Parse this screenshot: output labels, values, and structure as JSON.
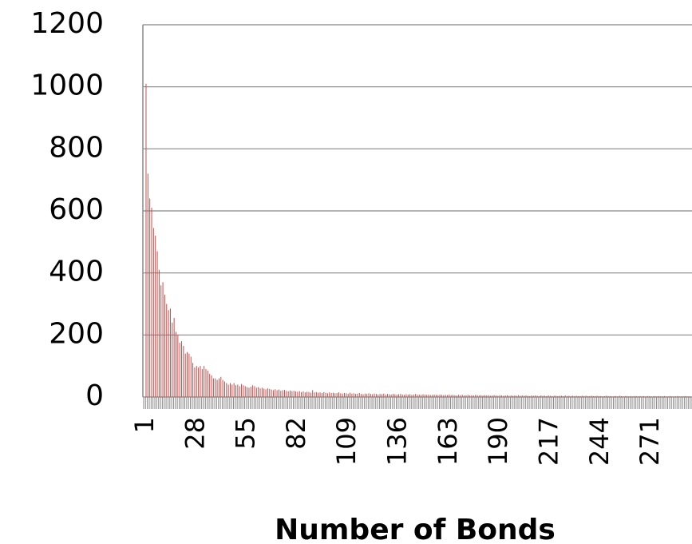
{
  "chart_data": {
    "type": "bar",
    "x_label": "Number of Bonds",
    "categories": [
      "1",
      null,
      null,
      null,
      null,
      null,
      null,
      null,
      null,
      null,
      null,
      null,
      null,
      null,
      null,
      null,
      null,
      null,
      null,
      null,
      null,
      null,
      null,
      null,
      null,
      null,
      null,
      "28",
      null,
      null,
      null,
      null,
      null,
      null,
      null,
      null,
      null,
      null,
      null,
      null,
      null,
      null,
      null,
      null,
      null,
      null,
      null,
      null,
      null,
      null,
      null,
      null,
      null,
      null,
      "55",
      null,
      null,
      null,
      null,
      null,
      null,
      null,
      null,
      null,
      null,
      null,
      null,
      null,
      null,
      null,
      null,
      null,
      null,
      null,
      null,
      null,
      null,
      null,
      null,
      null,
      null,
      "82",
      null,
      null,
      null,
      null,
      null,
      null,
      null,
      null,
      null,
      null,
      null,
      null,
      null,
      null,
      null,
      null,
      null,
      null,
      null,
      null,
      null,
      null,
      null,
      null,
      null,
      null,
      "109",
      null,
      null,
      null,
      null,
      null,
      null,
      null,
      null,
      null,
      null,
      null,
      null,
      null,
      null,
      null,
      null,
      null,
      null,
      null,
      null,
      null,
      null,
      null,
      null,
      null,
      null,
      "136",
      null,
      null,
      null,
      null,
      null,
      null,
      null,
      null,
      null,
      null,
      null,
      null,
      null,
      null,
      null,
      null,
      null,
      null,
      null,
      null,
      null,
      null,
      null,
      null,
      null,
      null,
      "163",
      null,
      null,
      null,
      null,
      null,
      null,
      null,
      null,
      null,
      null,
      null,
      null,
      null,
      null,
      null,
      null,
      null,
      null,
      null,
      null,
      null,
      null,
      null,
      null,
      null,
      null,
      "190",
      null,
      null,
      null,
      null,
      null,
      null,
      null,
      null,
      null,
      null,
      null,
      null,
      null,
      null,
      null,
      null,
      null,
      null,
      null,
      null,
      null,
      null,
      null,
      null,
      null,
      null,
      "217",
      null,
      null,
      null,
      null,
      null,
      null,
      null,
      null,
      null,
      null,
      null,
      null,
      null,
      null,
      null,
      null,
      null,
      null,
      null,
      null,
      null,
      null,
      null,
      null,
      null,
      null,
      "244",
      null,
      null,
      null,
      null,
      null,
      null,
      null,
      null,
      null,
      null,
      null,
      null,
      null,
      null,
      null,
      null,
      null,
      null,
      null,
      null,
      null,
      null,
      null,
      null,
      null,
      null,
      "271",
      null,
      null,
      null,
      null,
      null,
      null,
      null,
      null,
      null,
      null,
      null,
      null,
      null,
      null,
      null,
      null,
      null,
      null,
      null,
      null,
      null
    ],
    "values": [
      1010,
      720,
      640,
      610,
      545,
      520,
      470,
      410,
      360,
      370,
      330,
      300,
      280,
      285,
      240,
      255,
      210,
      200,
      175,
      180,
      165,
      140,
      145,
      140,
      130,
      110,
      95,
      100,
      95,
      100,
      90,
      100,
      90,
      85,
      75,
      70,
      60,
      60,
      55,
      60,
      65,
      55,
      50,
      45,
      40,
      45,
      40,
      45,
      38,
      40,
      35,
      42,
      38,
      35,
      32,
      30,
      33,
      38,
      35,
      30,
      32,
      28,
      30,
      27,
      25,
      28,
      26,
      24,
      22,
      25,
      22,
      24,
      20,
      22,
      23,
      20,
      18,
      21,
      19,
      20,
      18,
      17,
      19,
      16,
      18,
      15,
      17,
      16,
      14,
      22,
      15,
      16,
      14,
      15,
      13,
      16,
      14,
      12,
      15,
      13,
      14,
      12,
      13,
      15,
      12,
      11,
      13,
      12,
      10,
      14,
      11,
      12,
      10,
      11,
      13,
      10,
      9,
      11,
      10,
      12,
      10,
      9,
      11,
      10,
      8,
      10,
      9,
      11,
      8,
      10,
      9,
      8,
      10,
      9,
      8,
      9,
      10,
      8,
      7,
      9,
      8,
      9,
      7,
      8,
      10,
      7,
      8,
      7,
      9,
      8,
      7,
      8,
      6,
      7,
      8,
      7,
      6,
      8,
      7,
      6,
      7,
      6,
      8,
      6,
      7,
      6,
      5,
      7,
      6,
      7,
      5,
      6,
      7,
      5,
      6,
      5,
      7,
      6,
      5,
      6,
      5,
      6,
      5,
      6,
      4,
      5,
      6,
      5,
      4,
      6,
      5,
      4,
      5,
      6,
      4,
      5,
      4,
      5,
      4,
      6,
      4,
      5,
      4,
      5,
      4,
      3,
      5,
      4,
      5,
      4,
      3,
      5,
      4,
      4,
      3,
      5,
      4,
      3,
      4,
      4,
      3,
      4,
      4,
      3,
      5,
      3,
      4,
      3,
      4,
      3,
      4,
      3,
      3,
      4,
      3,
      4,
      3,
      3,
      4,
      3,
      3,
      4,
      3,
      3,
      2,
      3,
      4,
      3,
      3,
      2,
      3,
      3,
      2,
      4,
      3,
      2,
      3,
      3,
      2,
      3,
      2,
      3,
      3,
      2,
      3,
      2,
      3,
      2,
      3,
      3,
      2,
      2,
      3,
      2,
      3,
      2,
      2,
      3,
      2,
      2,
      3,
      2,
      2,
      2,
      3,
      2,
      2,
      2,
      3,
      2,
      2,
      2
    ],
    "color": "#c0504d",
    "ylim": [
      0,
      1200
    ],
    "yticks": [
      0,
      200,
      400,
      600,
      800,
      1000,
      1200
    ],
    "grid": true
  }
}
